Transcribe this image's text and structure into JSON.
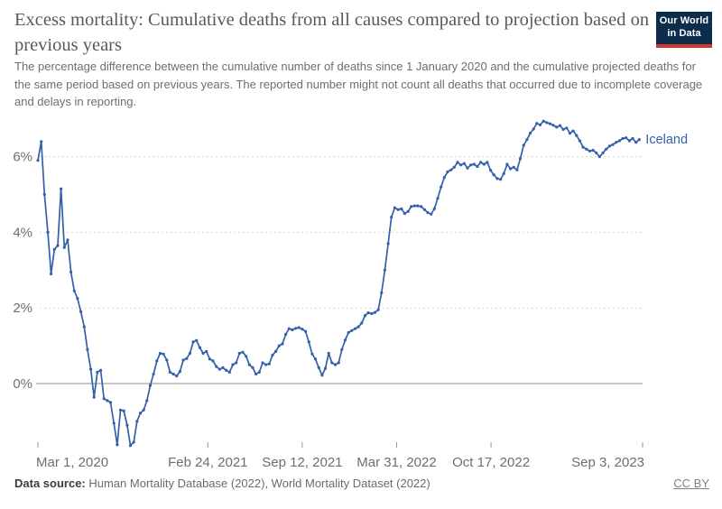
{
  "header": {
    "logo": {
      "line1": "Our World",
      "line2": "in Data",
      "bg": "#0d2d4d",
      "accent": "#cf352e"
    }
  },
  "footer": {
    "source_label": "Data source:",
    "source_text": " Human Mortality Database (2022), World Mortality Dataset (2022)",
    "license": "CC BY"
  },
  "colors": {
    "line": "#3360a9",
    "grid": "#d6d6d6",
    "zero_line": "#8f8f8f",
    "tick": "#9a9a9a",
    "axis_text": "#6e6e6e",
    "title_text": "#555a5e",
    "subtitle_text": "#6e6e6e"
  },
  "chart_data": {
    "type": "line",
    "title": "Excess mortality: Cumulative deaths from all causes compared to projection based on previous years",
    "subtitle": "The percentage difference between the cumulative number of deaths since 1 January 2020 and the cumulative projected deaths for the same period based on previous years. The reported number might not count all deaths that occurred due to incomplete coverage and delays in reporting.",
    "unit": "%",
    "grid": "horizontal-dashed",
    "legend_position": "end-of-line",
    "x_range": [
      "2020-03-01",
      "2023-09-03"
    ],
    "ylim": [
      -1.8,
      7.2
    ],
    "y_ticks": [
      {
        "value": 0,
        "label": "0%"
      },
      {
        "value": 2,
        "label": "2%"
      },
      {
        "value": 4,
        "label": "4%"
      },
      {
        "value": 6,
        "label": "6%"
      }
    ],
    "x_ticks": [
      {
        "date": "2020-03-01",
        "label": "Mar 1, 2020",
        "anchor": "start"
      },
      {
        "date": "2021-02-24",
        "label": "Feb 24, 2021",
        "anchor": "middle"
      },
      {
        "date": "2021-09-12",
        "label": "Sep 12, 2021",
        "anchor": "middle"
      },
      {
        "date": "2022-03-31",
        "label": "Mar 31, 2022",
        "anchor": "middle"
      },
      {
        "date": "2022-10-17",
        "label": "Oct 17, 2022",
        "anchor": "middle"
      },
      {
        "date": "2023-09-03",
        "label": "Sep 3, 2023",
        "anchor": "end"
      }
    ],
    "series": [
      {
        "name": "Iceland",
        "color": "#3360a9",
        "points": [
          [
            "2020-03-01",
            5.9
          ],
          [
            "2020-03-08",
            6.4
          ],
          [
            "2020-03-15",
            5.0
          ],
          [
            "2020-03-22",
            4.0
          ],
          [
            "2020-03-29",
            2.9
          ],
          [
            "2020-04-05",
            3.55
          ],
          [
            "2020-04-12",
            3.65
          ],
          [
            "2020-04-19",
            5.15
          ],
          [
            "2020-04-26",
            3.6
          ],
          [
            "2020-05-03",
            3.8
          ],
          [
            "2020-05-10",
            2.95
          ],
          [
            "2020-05-17",
            2.45
          ],
          [
            "2020-05-24",
            2.25
          ],
          [
            "2020-05-31",
            1.9
          ],
          [
            "2020-06-07",
            1.5
          ],
          [
            "2020-06-14",
            0.9
          ],
          [
            "2020-06-21",
            0.38
          ],
          [
            "2020-06-28",
            -0.36
          ],
          [
            "2020-07-05",
            0.3
          ],
          [
            "2020-07-12",
            0.35
          ],
          [
            "2020-07-19",
            -0.4
          ],
          [
            "2020-07-26",
            -0.45
          ],
          [
            "2020-08-02",
            -0.5
          ],
          [
            "2020-08-09",
            -1.05
          ],
          [
            "2020-08-16",
            -1.62
          ],
          [
            "2020-08-23",
            -0.7
          ],
          [
            "2020-08-30",
            -0.72
          ],
          [
            "2020-09-06",
            -1.1
          ],
          [
            "2020-09-13",
            -1.64
          ],
          [
            "2020-09-20",
            -1.55
          ],
          [
            "2020-09-27",
            -1.0
          ],
          [
            "2020-10-04",
            -0.78
          ],
          [
            "2020-10-11",
            -0.7
          ],
          [
            "2020-10-18",
            -0.45
          ],
          [
            "2020-10-25",
            -0.05
          ],
          [
            "2020-11-01",
            0.25
          ],
          [
            "2020-11-08",
            0.6
          ],
          [
            "2020-11-15",
            0.8
          ],
          [
            "2020-11-22",
            0.78
          ],
          [
            "2020-11-29",
            0.62
          ],
          [
            "2020-12-06",
            0.3
          ],
          [
            "2020-12-13",
            0.25
          ],
          [
            "2020-12-20",
            0.2
          ],
          [
            "2020-12-27",
            0.32
          ],
          [
            "2021-01-03",
            0.62
          ],
          [
            "2021-01-10",
            0.66
          ],
          [
            "2021-01-17",
            0.8
          ],
          [
            "2021-01-24",
            1.1
          ],
          [
            "2021-01-31",
            1.14
          ],
          [
            "2021-02-07",
            0.95
          ],
          [
            "2021-02-14",
            0.8
          ],
          [
            "2021-02-21",
            0.85
          ],
          [
            "2021-02-28",
            0.65
          ],
          [
            "2021-03-07",
            0.6
          ],
          [
            "2021-03-14",
            0.45
          ],
          [
            "2021-03-21",
            0.38
          ],
          [
            "2021-03-28",
            0.42
          ],
          [
            "2021-04-04",
            0.35
          ],
          [
            "2021-04-11",
            0.3
          ],
          [
            "2021-04-18",
            0.5
          ],
          [
            "2021-04-25",
            0.55
          ],
          [
            "2021-05-02",
            0.8
          ],
          [
            "2021-05-09",
            0.83
          ],
          [
            "2021-05-16",
            0.72
          ],
          [
            "2021-05-23",
            0.5
          ],
          [
            "2021-05-30",
            0.42
          ],
          [
            "2021-06-06",
            0.25
          ],
          [
            "2021-06-13",
            0.3
          ],
          [
            "2021-06-20",
            0.55
          ],
          [
            "2021-06-27",
            0.5
          ],
          [
            "2021-07-04",
            0.52
          ],
          [
            "2021-07-11",
            0.75
          ],
          [
            "2021-07-18",
            0.85
          ],
          [
            "2021-07-25",
            1.0
          ],
          [
            "2021-08-01",
            1.05
          ],
          [
            "2021-08-08",
            1.3
          ],
          [
            "2021-08-15",
            1.45
          ],
          [
            "2021-08-22",
            1.42
          ],
          [
            "2021-08-29",
            1.46
          ],
          [
            "2021-09-05",
            1.48
          ],
          [
            "2021-09-12",
            1.44
          ],
          [
            "2021-09-19",
            1.38
          ],
          [
            "2021-09-26",
            1.1
          ],
          [
            "2021-10-03",
            0.78
          ],
          [
            "2021-10-10",
            0.65
          ],
          [
            "2021-10-17",
            0.42
          ],
          [
            "2021-10-24",
            0.22
          ],
          [
            "2021-10-31",
            0.4
          ],
          [
            "2021-11-07",
            0.8
          ],
          [
            "2021-11-14",
            0.55
          ],
          [
            "2021-11-21",
            0.5
          ],
          [
            "2021-11-28",
            0.55
          ],
          [
            "2021-12-05",
            0.9
          ],
          [
            "2021-12-12",
            1.15
          ],
          [
            "2021-12-19",
            1.35
          ],
          [
            "2021-12-26",
            1.4
          ],
          [
            "2022-01-02",
            1.45
          ],
          [
            "2022-01-09",
            1.5
          ],
          [
            "2022-01-16",
            1.6
          ],
          [
            "2022-01-23",
            1.8
          ],
          [
            "2022-01-30",
            1.87
          ],
          [
            "2022-02-06",
            1.85
          ],
          [
            "2022-02-13",
            1.88
          ],
          [
            "2022-02-20",
            1.95
          ],
          [
            "2022-02-27",
            2.4
          ],
          [
            "2022-03-06",
            3.0
          ],
          [
            "2022-03-13",
            3.7
          ],
          [
            "2022-03-20",
            4.4
          ],
          [
            "2022-03-27",
            4.65
          ],
          [
            "2022-04-03",
            4.6
          ],
          [
            "2022-04-10",
            4.62
          ],
          [
            "2022-04-17",
            4.5
          ],
          [
            "2022-04-24",
            4.55
          ],
          [
            "2022-05-01",
            4.68
          ],
          [
            "2022-05-08",
            4.7
          ],
          [
            "2022-05-15",
            4.7
          ],
          [
            "2022-05-22",
            4.68
          ],
          [
            "2022-05-29",
            4.6
          ],
          [
            "2022-06-05",
            4.52
          ],
          [
            "2022-06-12",
            4.48
          ],
          [
            "2022-06-19",
            4.62
          ],
          [
            "2022-06-26",
            4.9
          ],
          [
            "2022-07-03",
            5.2
          ],
          [
            "2022-07-10",
            5.45
          ],
          [
            "2022-07-17",
            5.6
          ],
          [
            "2022-07-24",
            5.65
          ],
          [
            "2022-07-31",
            5.72
          ],
          [
            "2022-08-07",
            5.85
          ],
          [
            "2022-08-14",
            5.78
          ],
          [
            "2022-08-21",
            5.82
          ],
          [
            "2022-08-28",
            5.7
          ],
          [
            "2022-09-04",
            5.78
          ],
          [
            "2022-09-11",
            5.8
          ],
          [
            "2022-09-18",
            5.74
          ],
          [
            "2022-09-25",
            5.85
          ],
          [
            "2022-10-02",
            5.8
          ],
          [
            "2022-10-09",
            5.85
          ],
          [
            "2022-10-16",
            5.64
          ],
          [
            "2022-10-23",
            5.52
          ],
          [
            "2022-10-30",
            5.42
          ],
          [
            "2022-11-06",
            5.4
          ],
          [
            "2022-11-13",
            5.55
          ],
          [
            "2022-11-20",
            5.8
          ],
          [
            "2022-11-27",
            5.68
          ],
          [
            "2022-12-04",
            5.72
          ],
          [
            "2022-12-11",
            5.65
          ],
          [
            "2022-12-18",
            5.95
          ],
          [
            "2022-12-25",
            6.3
          ],
          [
            "2023-01-01",
            6.45
          ],
          [
            "2023-01-08",
            6.62
          ],
          [
            "2023-01-15",
            6.73
          ],
          [
            "2023-01-22",
            6.88
          ],
          [
            "2023-01-29",
            6.84
          ],
          [
            "2023-02-05",
            6.94
          ],
          [
            "2023-02-12",
            6.9
          ],
          [
            "2023-02-19",
            6.87
          ],
          [
            "2023-02-26",
            6.83
          ],
          [
            "2023-03-05",
            6.78
          ],
          [
            "2023-03-12",
            6.82
          ],
          [
            "2023-03-19",
            6.72
          ],
          [
            "2023-03-26",
            6.76
          ],
          [
            "2023-04-02",
            6.62
          ],
          [
            "2023-04-09",
            6.68
          ],
          [
            "2023-04-16",
            6.56
          ],
          [
            "2023-04-23",
            6.42
          ],
          [
            "2023-04-30",
            6.25
          ],
          [
            "2023-05-07",
            6.2
          ],
          [
            "2023-05-14",
            6.15
          ],
          [
            "2023-05-21",
            6.17
          ],
          [
            "2023-05-28",
            6.1
          ],
          [
            "2023-06-04",
            6.0
          ],
          [
            "2023-06-11",
            6.1
          ],
          [
            "2023-06-18",
            6.2
          ],
          [
            "2023-06-25",
            6.28
          ],
          [
            "2023-07-02",
            6.32
          ],
          [
            "2023-07-09",
            6.38
          ],
          [
            "2023-07-16",
            6.42
          ],
          [
            "2023-07-23",
            6.48
          ],
          [
            "2023-07-30",
            6.5
          ],
          [
            "2023-08-06",
            6.42
          ],
          [
            "2023-08-13",
            6.48
          ],
          [
            "2023-08-20",
            6.38
          ],
          [
            "2023-08-27",
            6.45
          ]
        ]
      }
    ]
  }
}
